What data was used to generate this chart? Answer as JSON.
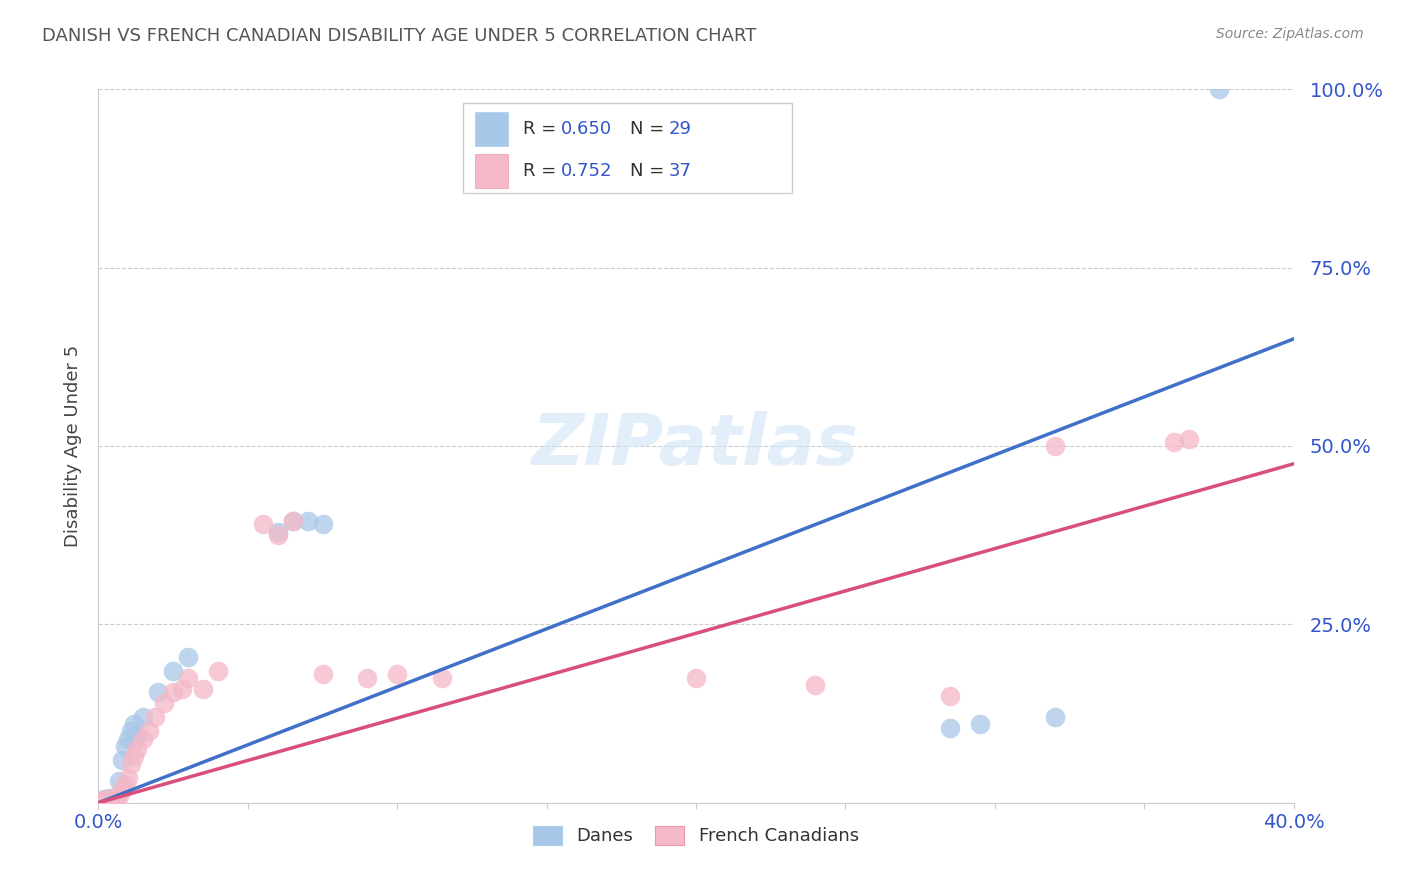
{
  "title": "DANISH VS FRENCH CANADIAN DISABILITY AGE UNDER 5 CORRELATION CHART",
  "source": "Source: ZipAtlas.com",
  "ylabel": "Disability Age Under 5",
  "xlim": [
    0.0,
    0.4
  ],
  "ylim": [
    0.0,
    1.0
  ],
  "yticks": [
    0.0,
    0.25,
    0.5,
    0.75,
    1.0
  ],
  "ytick_labels": [
    "",
    "25.0%",
    "50.0%",
    "75.0%",
    "100.0%"
  ],
  "xticks": [
    0.0,
    0.05,
    0.1,
    0.15,
    0.2,
    0.25,
    0.3,
    0.35,
    0.4
  ],
  "grid_color": "#cccccc",
  "background_color": "#ffffff",
  "danes_color": "#a8c8e8",
  "french_color": "#f4b8c8",
  "danes_line_color": "#4070c8",
  "french_line_color": "#d8507a",
  "R_danes": 0.65,
  "N_danes": 29,
  "R_french": 0.752,
  "N_french": 37,
  "legend_text_color": "#3355cc",
  "title_color": "#333333",
  "danes_trend": [
    0.0,
    0.0,
    0.4,
    0.65
  ],
  "french_trend": [
    0.0,
    0.0,
    0.4,
    0.475
  ],
  "danes_x": [
    0.001,
    0.002,
    0.002,
    0.003,
    0.003,
    0.004,
    0.004,
    0.005,
    0.005,
    0.006,
    0.007,
    0.008,
    0.009,
    0.01,
    0.011,
    0.012,
    0.013,
    0.015,
    0.02,
    0.025,
    0.03,
    0.06,
    0.065,
    0.07,
    0.075,
    0.285,
    0.295,
    0.32,
    0.375
  ],
  "danes_y": [
    0.003,
    0.002,
    0.005,
    0.004,
    0.006,
    0.003,
    0.007,
    0.004,
    0.006,
    0.005,
    0.03,
    0.06,
    0.08,
    0.09,
    0.1,
    0.11,
    0.095,
    0.12,
    0.155,
    0.185,
    0.205,
    0.38,
    0.395,
    0.395,
    0.39,
    0.105,
    0.11,
    0.12,
    1.0
  ],
  "french_x": [
    0.001,
    0.002,
    0.003,
    0.003,
    0.004,
    0.005,
    0.006,
    0.006,
    0.007,
    0.008,
    0.009,
    0.01,
    0.011,
    0.012,
    0.013,
    0.015,
    0.017,
    0.019,
    0.022,
    0.025,
    0.028,
    0.03,
    0.035,
    0.04,
    0.055,
    0.06,
    0.065,
    0.075,
    0.09,
    0.1,
    0.115,
    0.2,
    0.24,
    0.285,
    0.32,
    0.36,
    0.365
  ],
  "french_y": [
    0.002,
    0.003,
    0.003,
    0.005,
    0.004,
    0.003,
    0.006,
    0.008,
    0.01,
    0.018,
    0.025,
    0.035,
    0.055,
    0.065,
    0.075,
    0.09,
    0.1,
    0.12,
    0.14,
    0.155,
    0.16,
    0.175,
    0.16,
    0.185,
    0.39,
    0.375,
    0.395,
    0.18,
    0.175,
    0.18,
    0.175,
    0.175,
    0.165,
    0.15,
    0.5,
    0.505,
    0.51
  ]
}
